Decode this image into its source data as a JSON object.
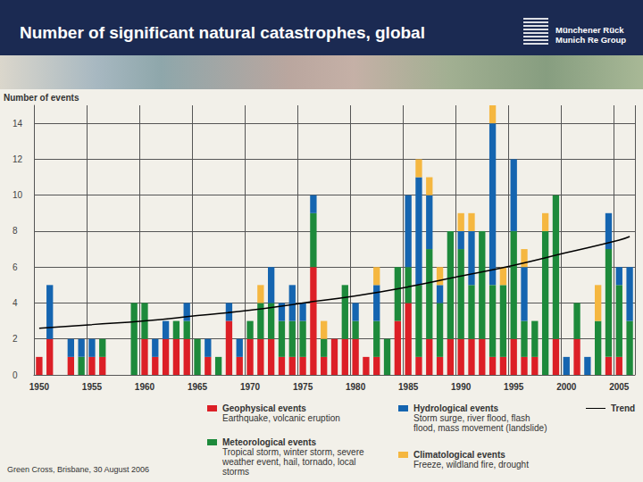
{
  "page": {
    "logo": [
      "Münchener Rück",
      "Munich Re Group"
    ],
    "footer": "Green Cross, Brisbane, 30 August 2006"
  },
  "chart_data": {
    "type": "bar",
    "title": "Number of significant natural catastrophes, global",
    "y_label": "Number of events",
    "categories": [
      1950,
      null,
      null,
      null,
      null,
      1955,
      null,
      null,
      null,
      null,
      1960,
      null,
      null,
      null,
      null,
      1965,
      null,
      null,
      null,
      null,
      1970,
      null,
      null,
      null,
      null,
      1975,
      null,
      null,
      null,
      null,
      1980,
      null,
      null,
      null,
      null,
      1985,
      null,
      null,
      null,
      null,
      1990,
      null,
      null,
      null,
      null,
      1995,
      null,
      null,
      null,
      null,
      2000,
      null,
      null,
      null,
      null,
      2005,
      null
    ],
    "stacked": true,
    "grid": true,
    "ylim": [
      0,
      15
    ],
    "yticks": [
      0,
      2,
      4,
      6,
      8,
      10,
      12,
      14
    ],
    "series": [
      {
        "name": "Geophysical events",
        "description": "Earthquake, volcanic eruption",
        "color": "#dc1f26",
        "values": [
          1,
          2,
          0,
          1,
          0,
          1,
          1,
          0,
          0,
          0,
          2,
          1,
          2,
          2,
          2,
          0,
          1,
          0,
          3,
          1,
          2,
          2,
          2,
          1,
          1,
          1,
          6,
          1,
          2,
          2,
          2,
          1,
          1,
          0,
          3,
          4,
          1,
          2,
          1,
          2,
          2,
          2,
          2,
          1,
          1,
          2,
          1,
          1,
          0,
          2,
          0,
          2,
          0,
          0,
          1,
          1,
          0
        ]
      },
      {
        "name": "Meteorological events",
        "description": "Tropical storm, winter storm, severe weather event, hail, tornado, local storms",
        "color": "#1d8a3b",
        "values": [
          0,
          0,
          0,
          0,
          1,
          0,
          1,
          0,
          0,
          4,
          2,
          0,
          0,
          1,
          1,
          2,
          0,
          1,
          0,
          0,
          1,
          2,
          2,
          2,
          2,
          2,
          3,
          1,
          0,
          3,
          1,
          0,
          2,
          2,
          3,
          2,
          4,
          5,
          3,
          6,
          5,
          3,
          6,
          4,
          4,
          6,
          2,
          2,
          8,
          8,
          0,
          2,
          0,
          3,
          6,
          4,
          3
        ]
      },
      {
        "name": "Hydrological events",
        "description": "Storm surge, river flood, flash flood, mass movement (landslide)",
        "color": "#1565b0",
        "values": [
          0,
          3,
          0,
          1,
          1,
          1,
          0,
          0,
          0,
          0,
          0,
          1,
          1,
          0,
          1,
          0,
          1,
          0,
          1,
          1,
          0,
          0,
          2,
          1,
          2,
          1,
          1,
          0,
          0,
          0,
          1,
          0,
          2,
          0,
          0,
          4,
          6,
          3,
          1,
          0,
          1,
          3,
          0,
          9,
          0,
          4,
          3,
          0,
          0,
          0,
          1,
          0,
          1,
          0,
          2,
          1,
          3
        ]
      },
      {
        "name": "Climatological events",
        "description": "Freeze, wildland fire, drought",
        "color": "#f5b740",
        "values": [
          0,
          0,
          0,
          0,
          0,
          0,
          0,
          0,
          0,
          0,
          0,
          0,
          0,
          0,
          0,
          0,
          0,
          0,
          0,
          0,
          0,
          1,
          0,
          0,
          0,
          0,
          0,
          1,
          0,
          0,
          0,
          0,
          1,
          0,
          0,
          0,
          1,
          1,
          1,
          0,
          1,
          1,
          0,
          1,
          1,
          0,
          1,
          0,
          1,
          0,
          0,
          0,
          0,
          2,
          0,
          0,
          0
        ]
      },
      {
        "name": "Trend",
        "type": "line",
        "color": "#000000",
        "values": [
          2.6,
          null,
          null,
          null,
          null,
          2.8,
          null,
          null,
          null,
          null,
          3.0,
          null,
          null,
          null,
          null,
          3.3,
          null,
          null,
          null,
          null,
          3.6,
          null,
          null,
          null,
          null,
          4.0,
          null,
          null,
          null,
          null,
          4.4,
          null,
          null,
          null,
          null,
          4.9,
          null,
          null,
          null,
          null,
          5.5,
          null,
          null,
          null,
          null,
          6.1,
          null,
          null,
          null,
          null,
          6.8,
          null,
          null,
          null,
          null,
          7.5,
          7.7
        ]
      }
    ]
  }
}
